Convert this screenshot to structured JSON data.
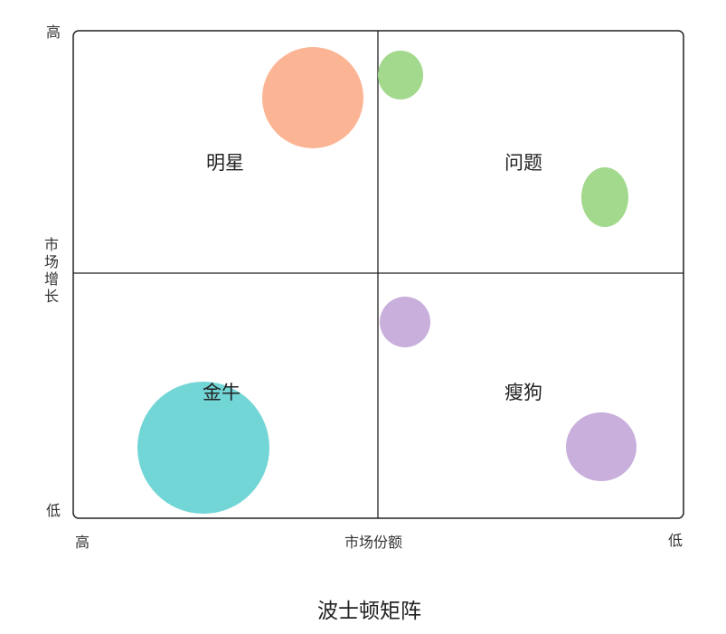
{
  "y_axis": {
    "title": "市场增长",
    "high": "高",
    "low": "低"
  },
  "x_axis": {
    "title": "市场份额",
    "high": "高",
    "low": "低"
  },
  "quadrants": {
    "star": "明星",
    "question": "问题",
    "cash_cow": "金牛",
    "dog": "瘦狗"
  },
  "caption": "波士顿矩阵",
  "colors": {
    "star": "#fcb594",
    "question": "#a2d98c",
    "cash_cow": "#72d5d6",
    "dog": "#c8afdc",
    "frame": "#222222"
  }
}
